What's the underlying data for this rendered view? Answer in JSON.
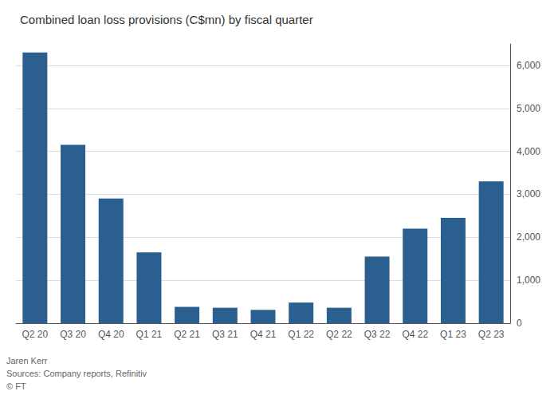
{
  "chart_data": {
    "type": "bar",
    "title": "Combined loan loss provisions (C$mn) by fiscal quarter",
    "categories": [
      "Q2 20",
      "Q3 20",
      "Q4 20",
      "Q1 21",
      "Q2 21",
      "Q3 21",
      "Q4 21",
      "Q1 22",
      "Q2 22",
      "Q3 22",
      "Q4 22",
      "Q1 23",
      "Q2 23"
    ],
    "values": [
      6300,
      4150,
      2900,
      1650,
      380,
      360,
      310,
      480,
      360,
      1550,
      2200,
      2450,
      3300
    ],
    "color": "#2a5f8f",
    "ylim": [
      0,
      6500
    ],
    "yticks": [
      0,
      {
        "value": 1000,
        "label": "1,000"
      },
      {
        "value": 2000,
        "label": "2,000"
      },
      {
        "value": 3000,
        "label": "3,000"
      },
      {
        "value": 4000,
        "label": "4,000"
      },
      {
        "value": 5000,
        "label": "5,000"
      },
      {
        "value": 6000,
        "label": "6,000"
      }
    ],
    "grid": true,
    "annotations": [
      "Jaren Kerr",
      "Sources: Company reports, Refinitiv",
      "© FT"
    ]
  }
}
